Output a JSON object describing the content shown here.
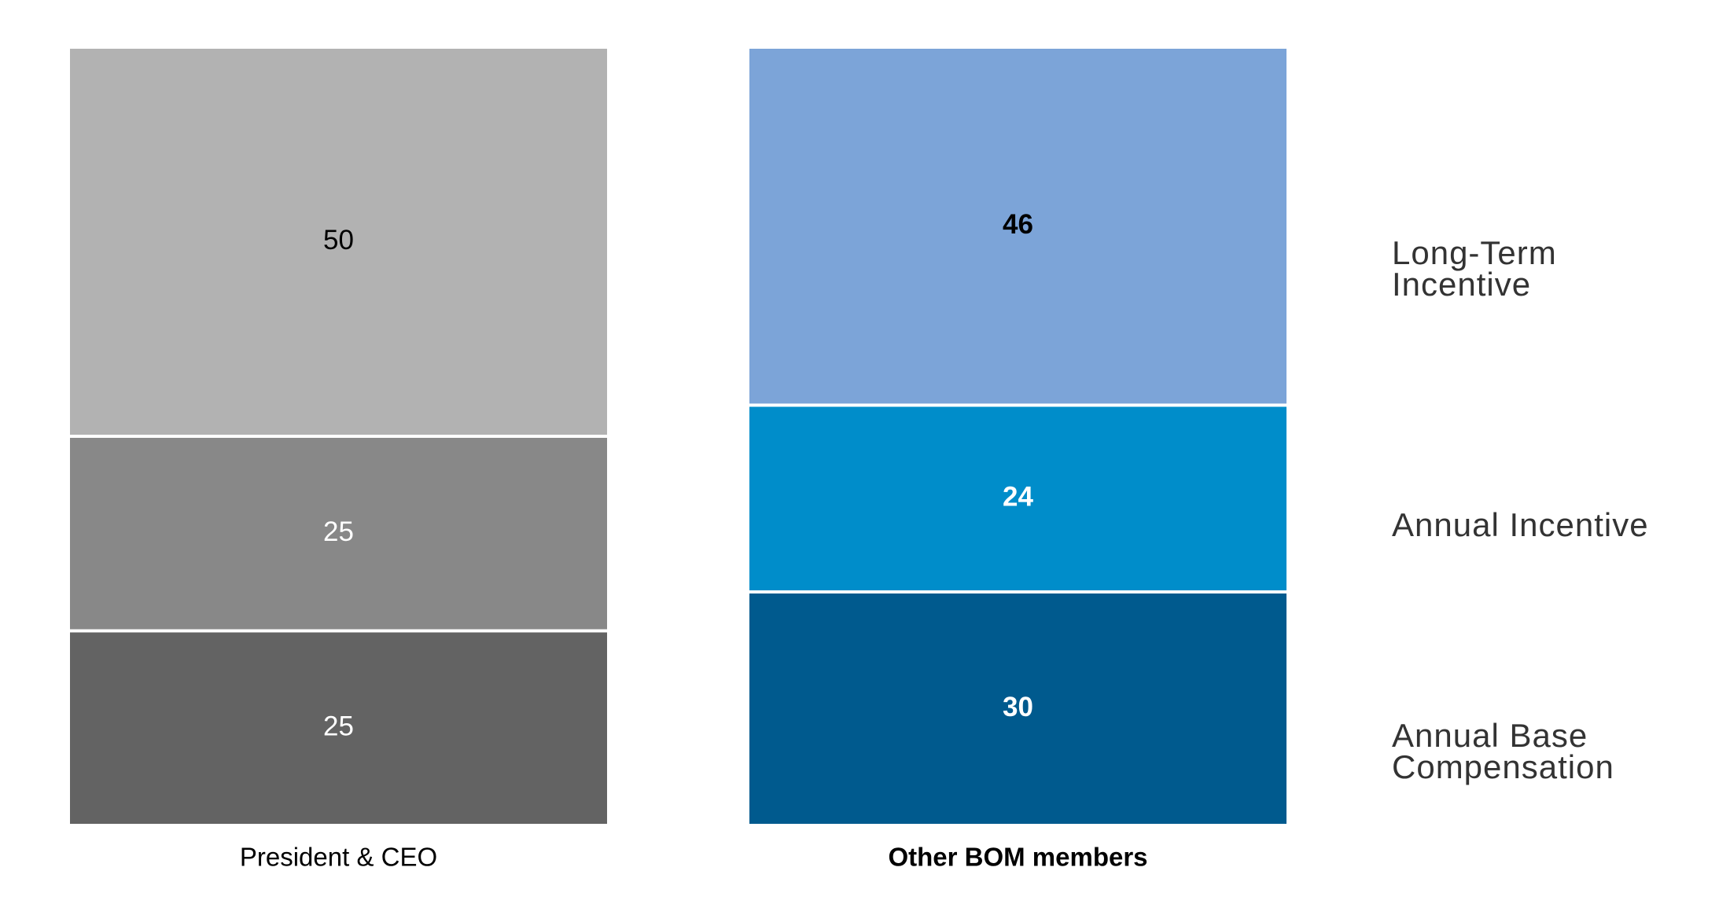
{
  "chart_data": {
    "type": "stacked_bar",
    "categories": [
      "President & CEO",
      "Other BOM members"
    ],
    "ylim": [
      0,
      100
    ],
    "series": [
      {
        "name": "Annual Base Compensation",
        "colors": [
          "#636363",
          "#005a8e"
        ],
        "values": [
          25,
          30
        ]
      },
      {
        "name": "Annual Incentive",
        "colors": [
          "#888888",
          "#008dca"
        ],
        "values": [
          25,
          24
        ]
      },
      {
        "name": "Long-Term Incentive",
        "colors": [
          "#b2b2b2",
          "#7ca4d8"
        ],
        "values": [
          50,
          46
        ]
      }
    ]
  }
}
